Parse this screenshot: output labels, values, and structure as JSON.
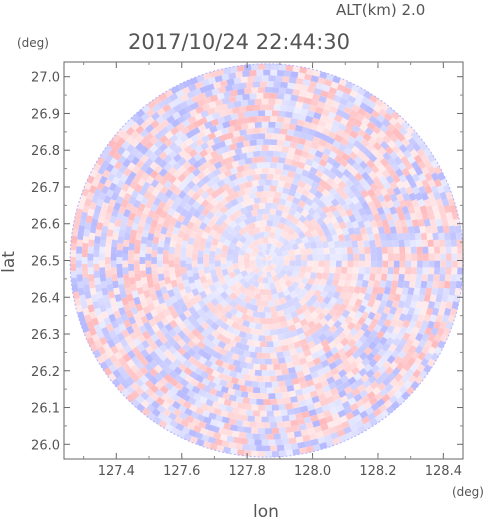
{
  "header": {
    "altitude_label": "ALT(km) 2.0",
    "timestamp": "2017/10/24 22:44:30"
  },
  "colors": {
    "negative": "#b4b8ff",
    "positive": "#ffb9bc",
    "background": "#ffffff",
    "axis": "#555555"
  },
  "chart_data": {
    "type": "heatmap",
    "title": "2017/10/24 22:44:30",
    "subtitle": "ALT(km) 2.0",
    "xlabel": "lon",
    "ylabel": "lat",
    "x_unit": "(deg)",
    "y_unit": "(deg)",
    "xlim": [
      127.24,
      128.46
    ],
    "ylim": [
      25.96,
      27.04
    ],
    "x_ticks": [
      127.4,
      127.6,
      127.8,
      128.0,
      128.2,
      128.4
    ],
    "y_ticks": [
      26.0,
      26.1,
      26.2,
      26.3,
      26.4,
      26.5,
      26.6,
      26.7,
      26.8,
      26.9,
      27.0
    ],
    "x_tick_labels": [
      "127.4",
      "127.6",
      "127.8",
      "128.0",
      "128.2",
      "128.4"
    ],
    "y_tick_labels": [
      "26.0",
      "26.1",
      "26.2",
      "26.3",
      "26.4",
      "26.5",
      "26.6",
      "26.7",
      "26.8",
      "26.9",
      "27.0"
    ],
    "center": {
      "lon": 127.86,
      "lat": 26.5
    },
    "radius_deg_lat": 0.535,
    "grid": false,
    "legend": "none"
  }
}
